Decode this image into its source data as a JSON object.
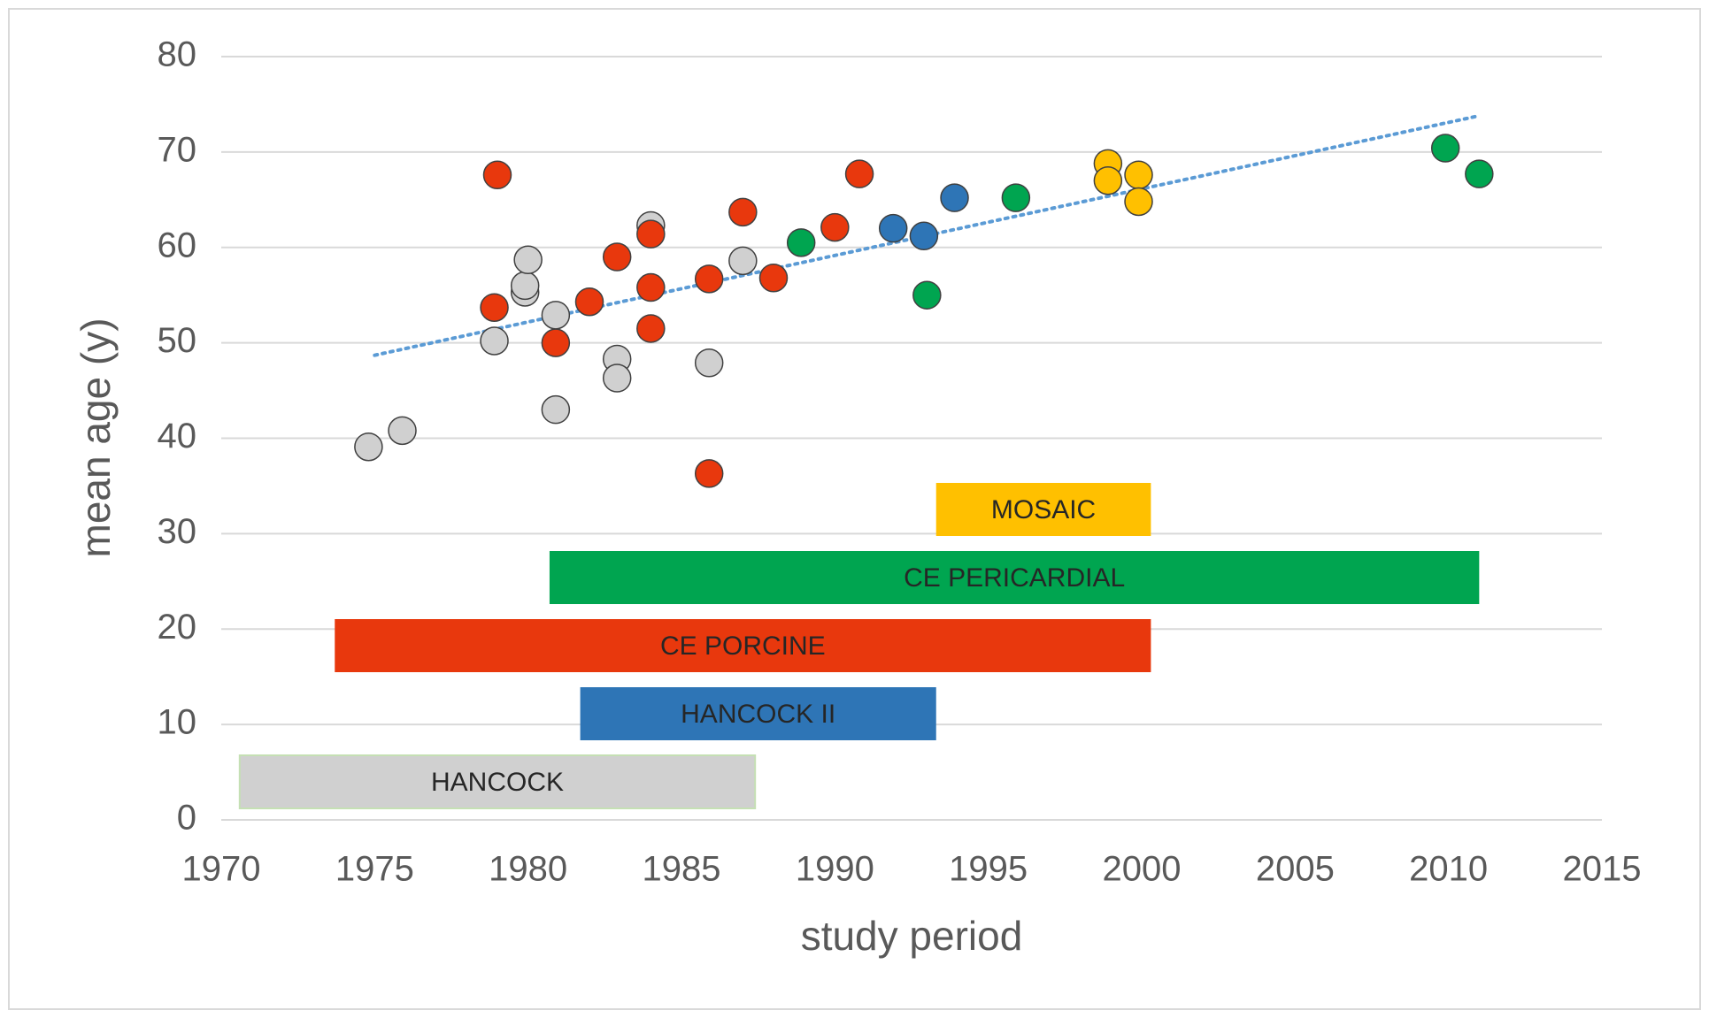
{
  "chart_data": {
    "type": "scatter",
    "x_label": "study period",
    "y_label": "mean age (y)",
    "xlim": [
      1970,
      2015
    ],
    "xticks": [
      1970,
      1975,
      1980,
      1985,
      1990,
      1995,
      2000,
      2005,
      2010,
      2015
    ],
    "ylim": [
      0,
      80
    ],
    "yticks": [
      0,
      10,
      20,
      30,
      40,
      50,
      60,
      70,
      80
    ],
    "grid": true,
    "series": [
      {
        "name": "HANCOCK",
        "color": "#d0d0d0",
        "period": [
          1970.6,
          1987.4
        ],
        "x": [
          1974.8,
          1975.9,
          1978.9,
          1979.9,
          1979.9,
          1980.0,
          1980.9,
          1980.9,
          1982.9,
          1982.9,
          1984.0,
          1985.9,
          1987.0
        ],
        "values": [
          39.1,
          40.8,
          50.2,
          55.3,
          56.0,
          58.7,
          52.9,
          43.0,
          48.3,
          46.3,
          62.3,
          47.9,
          58.6
        ]
      },
      {
        "name": "HANCOCK II",
        "color": "#2e75b6",
        "period": [
          1981.7,
          1993.3
        ],
        "x": [
          1991.9,
          1992.9,
          1993.9
        ],
        "values": [
          62.0,
          61.2,
          65.2
        ]
      },
      {
        "name": "CE PORCINE",
        "color": "#e8380d",
        "period": [
          1973.7,
          2000.3
        ],
        "x": [
          1979.0,
          1978.9,
          1980.9,
          1982.0,
          1982.9,
          1984.0,
          1984.0,
          1984.0,
          1985.9,
          1985.9,
          1987.0,
          1988.0,
          1990.0,
          1990.8
        ],
        "values": [
          67.6,
          53.7,
          50.0,
          54.3,
          59.0,
          61.4,
          55.8,
          51.5,
          56.7,
          36.3,
          63.7,
          56.8,
          62.1,
          67.7
        ]
      },
      {
        "name": "CE PERICARDIAL",
        "color": "#00a550",
        "period": [
          1980.7,
          2011.0
        ],
        "x": [
          1988.9,
          1993.0,
          1995.9,
          2009.9,
          2011.0
        ],
        "values": [
          60.5,
          55.0,
          65.2,
          70.4,
          67.7
        ]
      },
      {
        "name": "MOSAIC",
        "color": "#ffc000",
        "period": [
          1993.3,
          2000.3
        ],
        "x": [
          1998.9,
          1998.9,
          1999.9,
          1999.9
        ],
        "values": [
          68.8,
          67.0,
          67.6,
          64.8
        ]
      }
    ],
    "trendline": {
      "color": "#5b9bd5",
      "x": [
        1975,
        2011
      ],
      "values": [
        48.7,
        73.8
      ]
    }
  }
}
